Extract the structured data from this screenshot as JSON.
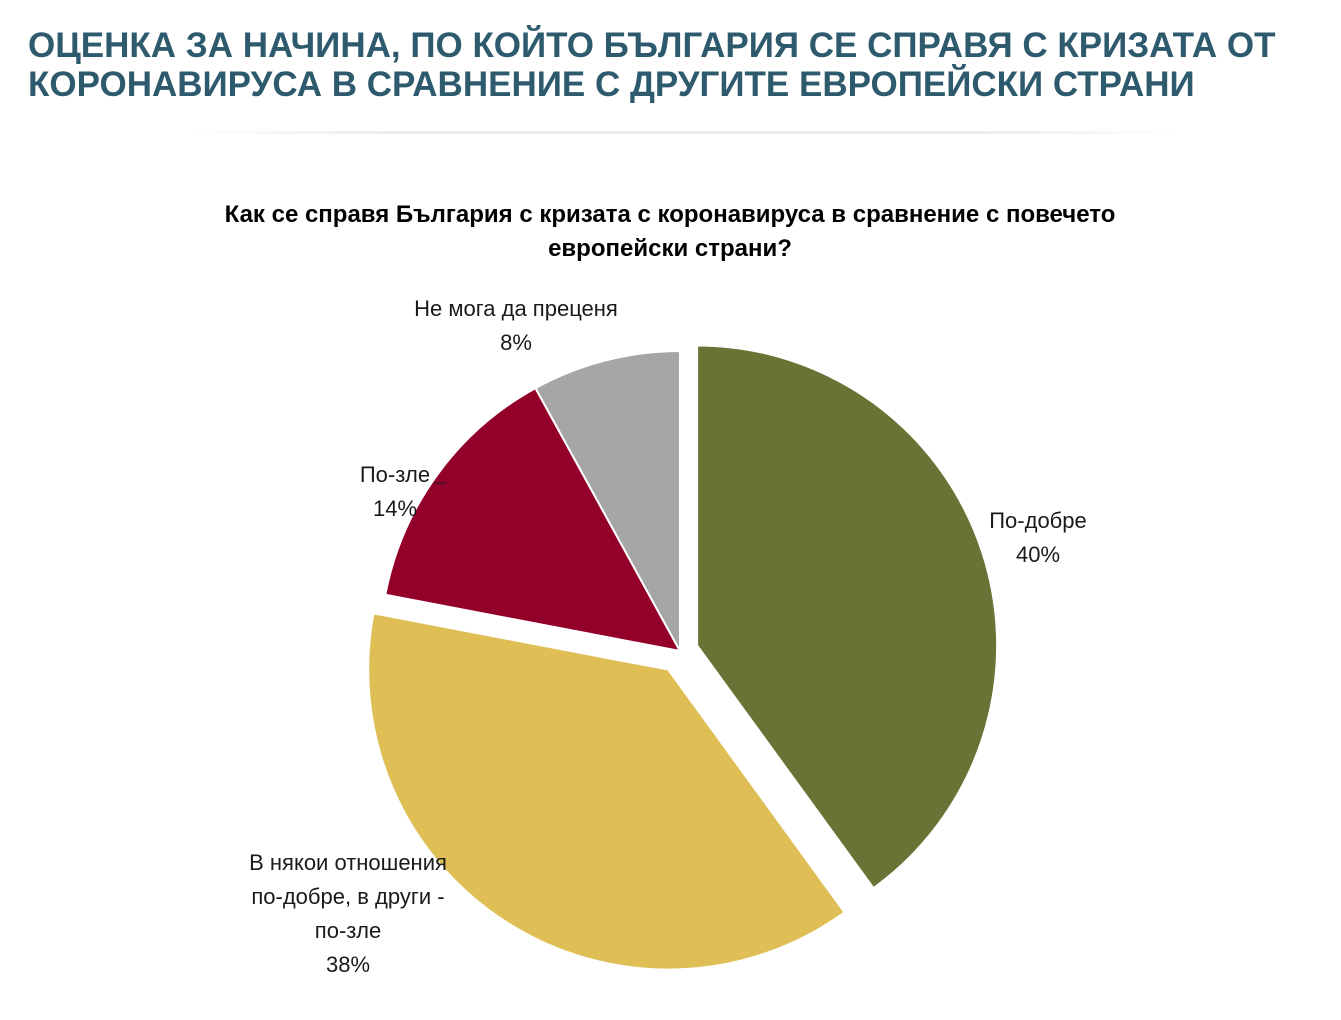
{
  "header": {
    "title_lines": [
      "ОЦЕНКА ЗА НАЧИНА, ПО КОЙТО БЪЛГАРИЯ СЕ СПРАВЯ С КРИЗАТА ОТ",
      "КОРОНАВИРУСА В СРАВНЕНИЕ С ДРУГИТЕ ЕВРОПЕЙСКИ СТРАНИ"
    ]
  },
  "chart_data": {
    "type": "pie",
    "title_lines": [
      "Как се справя България с кризата с коронавируса в сравнение с повечето",
      "европейски страни?"
    ],
    "slices": [
      {
        "label_lines": [
          "По-добре"
        ],
        "value": 40,
        "value_label": "40%",
        "color": "#6b7235",
        "exploded": true
      },
      {
        "label_lines": [
          "В някои отношения",
          "по-добре, в други -",
          "по-зле"
        ],
        "value": 38,
        "value_label": "38%",
        "color": "#dfbf55",
        "exploded": true
      },
      {
        "label_lines": [
          "По-зле"
        ],
        "value": 14,
        "value_label": "14%",
        "color": "#93002a",
        "exploded": false
      },
      {
        "label_lines": [
          "Не мога да преценя"
        ],
        "value": 8,
        "value_label": "8%",
        "color": "#a6a6a6",
        "exploded": false
      }
    ]
  }
}
